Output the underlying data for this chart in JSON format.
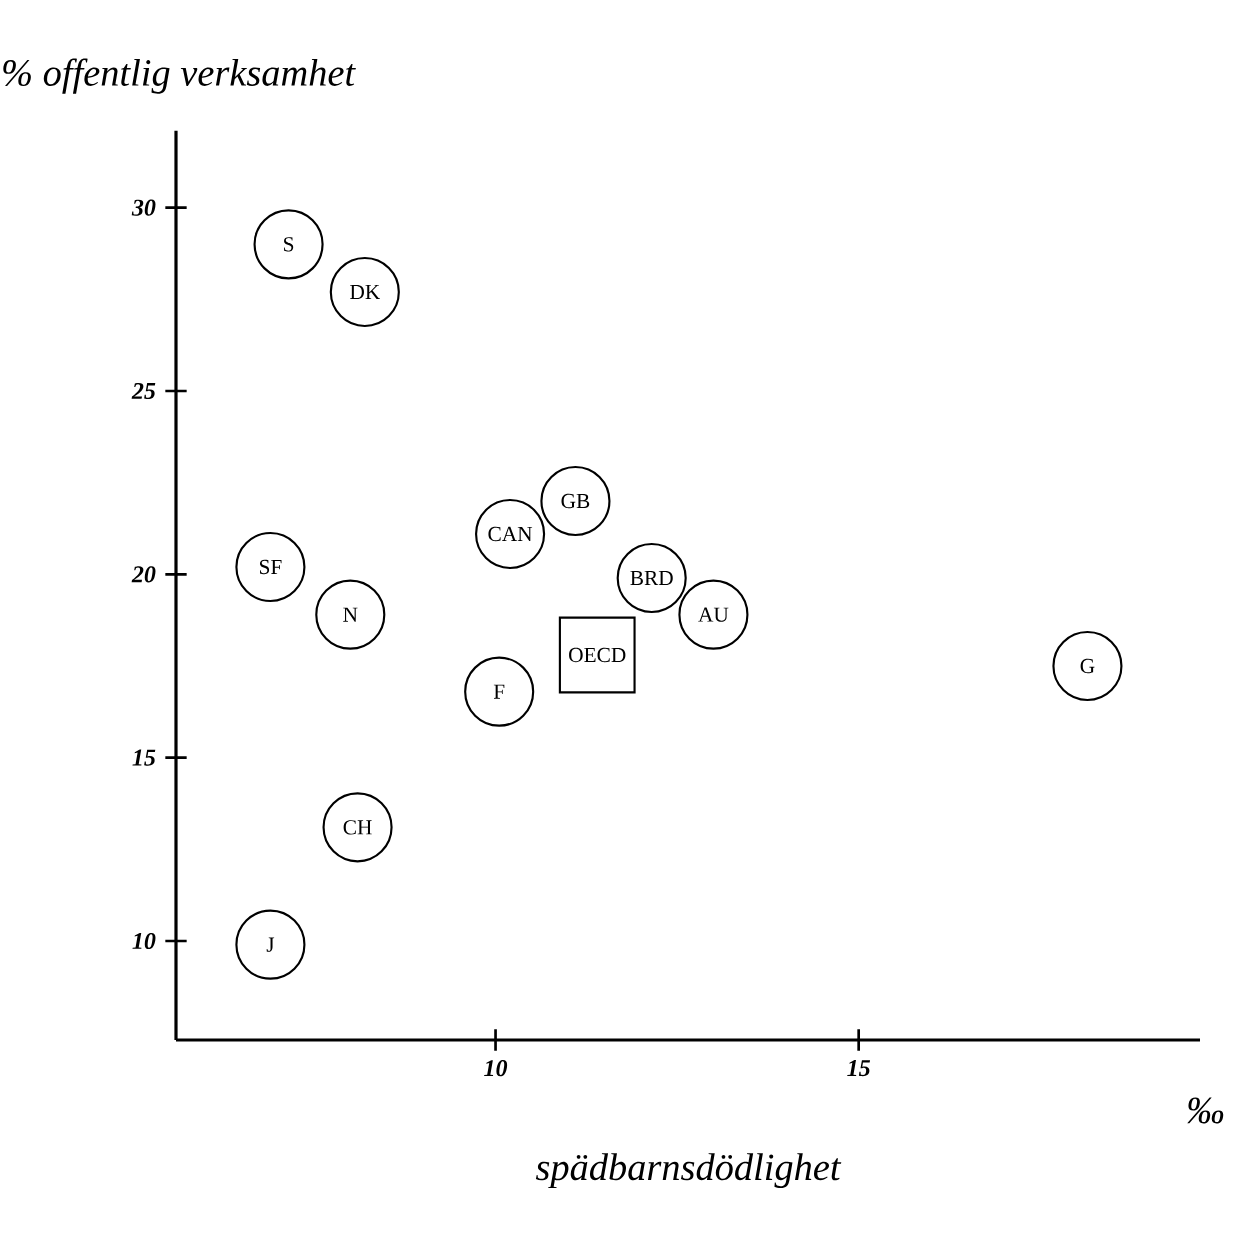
{
  "chart_data": {
    "type": "scatter",
    "xlabel": "spädbarnsdödlighet",
    "ylabel": "% offentlig verksamhet",
    "xlim": [
      5.6,
      19.7
    ],
    "ylim": [
      7.3,
      32.1
    ],
    "xticks": [
      10,
      15
    ],
    "yticks": [
      10,
      15,
      20,
      25,
      30
    ],
    "grid": false,
    "series": [
      {
        "color": "#000000",
        "marker": "circle",
        "x": [
          7.15,
          8.2,
          11.1,
          10.2,
          6.9,
          8.0,
          12.15,
          13.0,
          10.05,
          18.15,
          8.1,
          6.9
        ],
        "values": [
          29.0,
          27.7,
          22.0,
          21.1,
          20.2,
          18.9,
          19.9,
          18.9,
          16.8,
          17.5,
          13.1,
          9.9
        ]
      },
      {
        "color": "#000000",
        "marker": "square",
        "x": [
          11.4
        ],
        "values": [
          17.8
        ]
      }
    ],
    "annotations": [
      {
        "text": "S",
        "x": 7.15,
        "y": 29.0
      },
      {
        "text": "DK",
        "x": 8.2,
        "y": 27.7
      },
      {
        "text": "GB",
        "x": 11.1,
        "y": 22.0
      },
      {
        "text": "CAN",
        "x": 10.2,
        "y": 21.1
      },
      {
        "text": "SF",
        "x": 6.9,
        "y": 20.2
      },
      {
        "text": "N",
        "x": 8.0,
        "y": 18.9
      },
      {
        "text": "BRD",
        "x": 12.15,
        "y": 19.9
      },
      {
        "text": "AU",
        "x": 13.0,
        "y": 18.9
      },
      {
        "text": "F",
        "x": 10.05,
        "y": 16.8
      },
      {
        "text": "G",
        "x": 18.15,
        "y": 17.5
      },
      {
        "text": "CH",
        "x": 8.1,
        "y": 13.1
      },
      {
        "text": "J",
        "x": 6.9,
        "y": 9.9
      },
      {
        "text": "OECD",
        "x": 11.4,
        "y": 17.8
      },
      "‰"
    ]
  }
}
